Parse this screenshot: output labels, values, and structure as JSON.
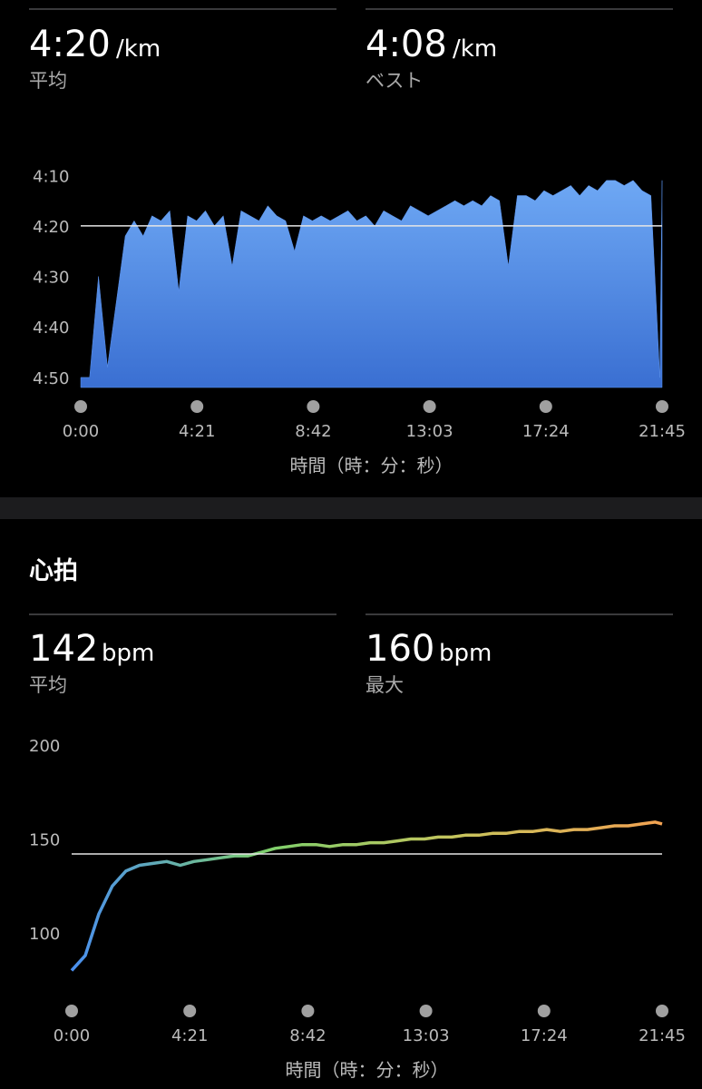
{
  "pace_section": {
    "stats": [
      {
        "value": "4:20",
        "unit": "/km",
        "label": "平均"
      },
      {
        "value": "4:08",
        "unit": "/km",
        "label": "ベスト"
      }
    ]
  },
  "heart_section": {
    "title": "心拍",
    "stats": [
      {
        "value": 142,
        "unit": "bpm",
        "label": "平均"
      },
      {
        "value": 160,
        "unit": "bpm",
        "label": "最大"
      }
    ]
  },
  "chart_data": [
    {
      "type": "area",
      "color": "#5b93ee",
      "x_label": "時間（時：分：秒）",
      "reference_line": 260,
      "xlim": [
        0,
        1305
      ],
      "xticks": [
        {
          "value": 0,
          "label": "0:00"
        },
        {
          "value": 261,
          "label": "4:21"
        },
        {
          "value": 522,
          "label": "8:42"
        },
        {
          "value": 783,
          "label": "13:03"
        },
        {
          "value": 1044,
          "label": "17:24"
        },
        {
          "value": 1305,
          "label": "21:45"
        }
      ],
      "ylim": [
        292,
        246
      ],
      "yticks": [
        {
          "value": 250,
          "label": "4:10"
        },
        {
          "value": 260,
          "label": "4:20"
        },
        {
          "value": 270,
          "label": "4:30"
        },
        {
          "value": 280,
          "label": "4:40"
        },
        {
          "value": 290,
          "label": "4:50"
        }
      ],
      "x": [
        0,
        20,
        40,
        60,
        80,
        100,
        120,
        140,
        160,
        180,
        200,
        220,
        240,
        260,
        280,
        300,
        320,
        340,
        360,
        380,
        400,
        420,
        440,
        460,
        480,
        500,
        520,
        540,
        560,
        580,
        600,
        620,
        640,
        660,
        680,
        700,
        720,
        740,
        760,
        780,
        800,
        820,
        840,
        860,
        880,
        900,
        920,
        940,
        960,
        980,
        1000,
        1020,
        1040,
        1060,
        1080,
        1100,
        1120,
        1140,
        1160,
        1180,
        1200,
        1220,
        1240,
        1260,
        1280,
        1300,
        1305
      ],
      "values": [
        290,
        290,
        270,
        288,
        275,
        262,
        259,
        262,
        258,
        259,
        257,
        273,
        258,
        259,
        257,
        260,
        258,
        268,
        257,
        258,
        259,
        256,
        258,
        259,
        265,
        258,
        259,
        258,
        259,
        258,
        257,
        259,
        258,
        260,
        257,
        258,
        259,
        256,
        257,
        258,
        257,
        256,
        255,
        256,
        255,
        256,
        254,
        255,
        268,
        254,
        254,
        255,
        253,
        254,
        253,
        252,
        254,
        252,
        253,
        251,
        251,
        252,
        251,
        253,
        254,
        290,
        251
      ]
    },
    {
      "type": "line",
      "colors": [
        "#4a8ff0",
        "#7fd06c",
        "#c9c35c",
        "#f2a252"
      ],
      "x_label": "時間（時：分：秒）",
      "reference_line": 142,
      "xlim": [
        0,
        1305
      ],
      "xticks": [
        {
          "value": 0,
          "label": "0:00"
        },
        {
          "value": 261,
          "label": "4:21"
        },
        {
          "value": 522,
          "label": "8:42"
        },
        {
          "value": 783,
          "label": "13:03"
        },
        {
          "value": 1044,
          "label": "17:24"
        },
        {
          "value": 1305,
          "label": "21:45"
        }
      ],
      "ylim": [
        65,
        205
      ],
      "yticks": [
        100,
        150,
        200
      ],
      "x": [
        0,
        30,
        60,
        90,
        120,
        150,
        180,
        210,
        240,
        270,
        300,
        330,
        360,
        390,
        420,
        450,
        480,
        510,
        540,
        570,
        600,
        630,
        660,
        690,
        720,
        750,
        780,
        810,
        840,
        870,
        900,
        930,
        960,
        990,
        1020,
        1050,
        1080,
        1110,
        1140,
        1170,
        1200,
        1230,
        1260,
        1290,
        1305
      ],
      "values": [
        80,
        88,
        110,
        125,
        133,
        136,
        137,
        138,
        136,
        138,
        139,
        140,
        141,
        141,
        143,
        145,
        146,
        147,
        147,
        146,
        147,
        147,
        148,
        148,
        149,
        150,
        150,
        151,
        151,
        152,
        152,
        153,
        153,
        154,
        154,
        155,
        154,
        155,
        155,
        156,
        157,
        157,
        158,
        159,
        158
      ]
    }
  ]
}
